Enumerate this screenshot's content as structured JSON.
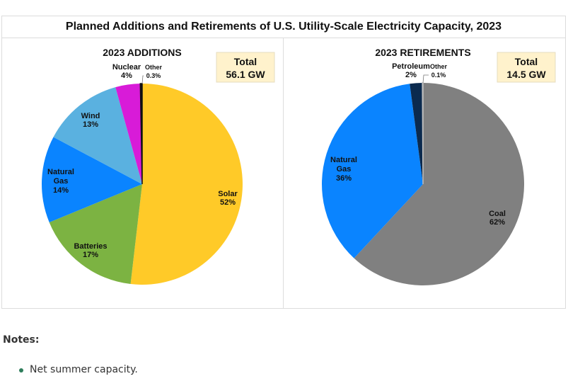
{
  "chart_data": [
    {
      "type": "pie",
      "title": "2023 ADDITIONS",
      "total_label": [
        "Total",
        "56.1 GW"
      ],
      "slices": [
        {
          "label": "Solar",
          "value": 52,
          "display": "52%",
          "color": "#FFCA28"
        },
        {
          "label": "Batteries",
          "value": 17,
          "display": "17%",
          "color": "#7CB342"
        },
        {
          "label": "Natural Gas",
          "value": 14,
          "display": "14%",
          "color": "#0A84FF"
        },
        {
          "label": "Wind",
          "value": 13,
          "display": "13%",
          "color": "#5AB1E0"
        },
        {
          "label": "Nuclear",
          "value": 4,
          "display": "4%",
          "color": "#D81BD8"
        },
        {
          "label": "Other",
          "value": 0.3,
          "display": "0.3%",
          "color": "#111111"
        }
      ]
    },
    {
      "type": "pie",
      "title": "2023 RETIREMENTS",
      "total_label": [
        "Total",
        "14.5 GW"
      ],
      "slices": [
        {
          "label": "Coal",
          "value": 62,
          "display": "62%",
          "color": "#808080"
        },
        {
          "label": "Natural Gas",
          "value": 36,
          "display": "36%",
          "color": "#0A84FF"
        },
        {
          "label": "Petroleum",
          "value": 2,
          "display": "2%",
          "color": "#0B2A4E"
        },
        {
          "label": "Other",
          "value": 0.1,
          "display": "0.1%",
          "color": "#BDBDBD"
        }
      ]
    }
  ],
  "figure_title": "Planned Additions and Retirements of U.S. Utility-Scale Electricity Capacity, 2023",
  "notes": {
    "label": "Notes:",
    "items": [
      "Net summer capacity."
    ]
  }
}
